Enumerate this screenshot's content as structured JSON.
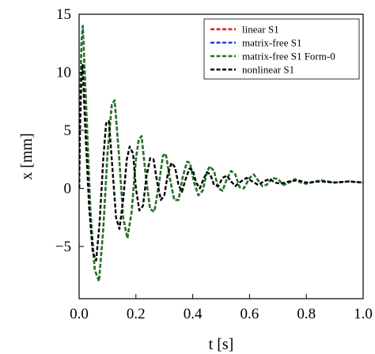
{
  "chart_data": {
    "type": "line",
    "xlabel": "t [s]",
    "ylabel": "x [mm]",
    "xlim": [
      0.0,
      1.0
    ],
    "ylim": [
      -9.5,
      15.0
    ],
    "xticks": [
      0.0,
      0.2,
      0.4,
      0.6,
      0.8,
      1.0
    ],
    "xtick_labels": [
      "0.0",
      "0.2",
      "0.4",
      "0.6",
      "0.8",
      "1.0"
    ],
    "yticks": [
      -5,
      0,
      5,
      10,
      15
    ],
    "ytick_labels": [
      "−5",
      "0",
      "5",
      "10",
      "15"
    ],
    "grid": false,
    "legend_position": "top-right",
    "series": [
      {
        "name": "linear S1",
        "color": "#e41a1c",
        "points": [
          [
            0.0,
            0.0
          ],
          [
            0.003,
            6.0
          ],
          [
            0.008,
            12.5
          ],
          [
            0.013,
            14.0
          ],
          [
            0.025,
            7.0
          ],
          [
            0.04,
            -2.0
          ],
          [
            0.055,
            -7.0
          ],
          [
            0.07,
            -8.0
          ],
          [
            0.085,
            -3.5
          ],
          [
            0.1,
            3.0
          ],
          [
            0.115,
            7.2
          ],
          [
            0.125,
            7.6
          ],
          [
            0.14,
            3.0
          ],
          [
            0.155,
            -2.5
          ],
          [
            0.17,
            -4.3
          ],
          [
            0.185,
            -2.0
          ],
          [
            0.2,
            2.5
          ],
          [
            0.21,
            4.2
          ],
          [
            0.22,
            4.5
          ],
          [
            0.235,
            1.0
          ],
          [
            0.25,
            -1.8
          ],
          [
            0.265,
            -2.0
          ],
          [
            0.28,
            0.2
          ],
          [
            0.295,
            2.8
          ],
          [
            0.305,
            3.0
          ],
          [
            0.32,
            0.8
          ],
          [
            0.335,
            -1.0
          ],
          [
            0.35,
            -1.0
          ],
          [
            0.365,
            1.0
          ],
          [
            0.38,
            2.3
          ],
          [
            0.39,
            2.2
          ],
          [
            0.405,
            0.5
          ],
          [
            0.42,
            -0.6
          ],
          [
            0.435,
            -0.2
          ],
          [
            0.45,
            1.4
          ],
          [
            0.46,
            1.9
          ],
          [
            0.475,
            1.5
          ],
          [
            0.49,
            0.0
          ],
          [
            0.505,
            -0.2
          ],
          [
            0.52,
            0.8
          ],
          [
            0.535,
            1.5
          ],
          [
            0.55,
            1.2
          ],
          [
            0.565,
            0.1
          ],
          [
            0.58,
            0.0
          ],
          [
            0.6,
            0.9
          ],
          [
            0.615,
            1.2
          ],
          [
            0.63,
            0.7
          ],
          [
            0.645,
            0.2
          ],
          [
            0.66,
            0.3
          ],
          [
            0.68,
            0.9
          ],
          [
            0.7,
            0.8
          ],
          [
            0.72,
            0.3
          ],
          [
            0.74,
            0.5
          ],
          [
            0.76,
            0.8
          ],
          [
            0.78,
            0.5
          ],
          [
            0.8,
            0.4
          ],
          [
            0.85,
            0.7
          ],
          [
            0.9,
            0.5
          ],
          [
            0.95,
            0.6
          ],
          [
            1.0,
            0.5
          ]
        ]
      },
      {
        "name": "matrix-free S1",
        "color": "#1f3fd8",
        "points": [
          [
            0.0,
            0.0
          ],
          [
            0.003,
            6.0
          ],
          [
            0.008,
            12.5
          ],
          [
            0.013,
            14.0
          ],
          [
            0.025,
            7.0
          ],
          [
            0.04,
            -2.0
          ],
          [
            0.055,
            -7.0
          ],
          [
            0.07,
            -8.0
          ],
          [
            0.085,
            -3.5
          ],
          [
            0.1,
            3.0
          ],
          [
            0.115,
            7.2
          ],
          [
            0.125,
            7.6
          ],
          [
            0.14,
            3.0
          ],
          [
            0.155,
            -2.5
          ],
          [
            0.17,
            -4.3
          ],
          [
            0.185,
            -2.0
          ],
          [
            0.2,
            2.5
          ],
          [
            0.21,
            4.2
          ],
          [
            0.22,
            4.5
          ],
          [
            0.235,
            1.0
          ],
          [
            0.25,
            -1.8
          ],
          [
            0.265,
            -2.0
          ],
          [
            0.28,
            0.2
          ],
          [
            0.295,
            2.8
          ],
          [
            0.305,
            3.0
          ],
          [
            0.32,
            0.8
          ],
          [
            0.335,
            -1.0
          ],
          [
            0.35,
            -1.0
          ],
          [
            0.365,
            1.0
          ],
          [
            0.38,
            2.3
          ],
          [
            0.39,
            2.2
          ],
          [
            0.405,
            0.5
          ],
          [
            0.42,
            -0.6
          ],
          [
            0.435,
            -0.2
          ],
          [
            0.45,
            1.4
          ],
          [
            0.46,
            1.9
          ],
          [
            0.475,
            1.5
          ],
          [
            0.49,
            0.0
          ],
          [
            0.505,
            -0.2
          ],
          [
            0.52,
            0.8
          ],
          [
            0.535,
            1.5
          ],
          [
            0.55,
            1.2
          ],
          [
            0.565,
            0.1
          ],
          [
            0.58,
            0.0
          ],
          [
            0.6,
            0.9
          ],
          [
            0.615,
            1.2
          ],
          [
            0.63,
            0.7
          ],
          [
            0.645,
            0.2
          ],
          [
            0.66,
            0.3
          ],
          [
            0.68,
            0.9
          ],
          [
            0.7,
            0.8
          ],
          [
            0.72,
            0.3
          ],
          [
            0.74,
            0.5
          ],
          [
            0.76,
            0.8
          ],
          [
            0.78,
            0.5
          ],
          [
            0.8,
            0.4
          ],
          [
            0.85,
            0.7
          ],
          [
            0.9,
            0.5
          ],
          [
            0.95,
            0.6
          ],
          [
            1.0,
            0.5
          ]
        ]
      },
      {
        "name": "matrix-free S1 Form-0",
        "color": "#1d7a1d",
        "points": [
          [
            0.0,
            0.0
          ],
          [
            0.003,
            6.0
          ],
          [
            0.008,
            12.5
          ],
          [
            0.013,
            14.0
          ],
          [
            0.025,
            7.0
          ],
          [
            0.04,
            -2.0
          ],
          [
            0.055,
            -7.0
          ],
          [
            0.07,
            -8.0
          ],
          [
            0.085,
            -3.5
          ],
          [
            0.1,
            3.0
          ],
          [
            0.115,
            7.2
          ],
          [
            0.125,
            7.6
          ],
          [
            0.14,
            3.0
          ],
          [
            0.155,
            -2.5
          ],
          [
            0.17,
            -4.3
          ],
          [
            0.185,
            -2.0
          ],
          [
            0.2,
            2.5
          ],
          [
            0.21,
            4.2
          ],
          [
            0.22,
            4.5
          ],
          [
            0.235,
            1.0
          ],
          [
            0.25,
            -1.8
          ],
          [
            0.265,
            -2.0
          ],
          [
            0.28,
            0.2
          ],
          [
            0.295,
            2.8
          ],
          [
            0.305,
            3.0
          ],
          [
            0.32,
            0.8
          ],
          [
            0.335,
            -1.0
          ],
          [
            0.35,
            -1.0
          ],
          [
            0.365,
            1.0
          ],
          [
            0.38,
            2.3
          ],
          [
            0.39,
            2.2
          ],
          [
            0.405,
            0.5
          ],
          [
            0.42,
            -0.6
          ],
          [
            0.435,
            -0.2
          ],
          [
            0.45,
            1.4
          ],
          [
            0.46,
            1.9
          ],
          [
            0.475,
            1.5
          ],
          [
            0.49,
            0.0
          ],
          [
            0.505,
            -0.2
          ],
          [
            0.52,
            0.8
          ],
          [
            0.535,
            1.5
          ],
          [
            0.55,
            1.2
          ],
          [
            0.565,
            0.1
          ],
          [
            0.58,
            0.0
          ],
          [
            0.6,
            0.9
          ],
          [
            0.615,
            1.2
          ],
          [
            0.63,
            0.7
          ],
          [
            0.645,
            0.2
          ],
          [
            0.66,
            0.3
          ],
          [
            0.68,
            0.9
          ],
          [
            0.7,
            0.8
          ],
          [
            0.72,
            0.3
          ],
          [
            0.74,
            0.5
          ],
          [
            0.76,
            0.8
          ],
          [
            0.78,
            0.5
          ],
          [
            0.8,
            0.4
          ],
          [
            0.85,
            0.7
          ],
          [
            0.9,
            0.5
          ],
          [
            0.95,
            0.6
          ],
          [
            1.0,
            0.5
          ]
        ]
      },
      {
        "name": "nonlinear S1",
        "color": "#000000",
        "points": [
          [
            0.0,
            0.0
          ],
          [
            0.003,
            5.0
          ],
          [
            0.008,
            9.5
          ],
          [
            0.012,
            10.7
          ],
          [
            0.022,
            5.0
          ],
          [
            0.035,
            -1.5
          ],
          [
            0.048,
            -5.5
          ],
          [
            0.06,
            -6.2
          ],
          [
            0.072,
            -3.0
          ],
          [
            0.085,
            2.5
          ],
          [
            0.095,
            5.6
          ],
          [
            0.105,
            5.8
          ],
          [
            0.118,
            1.5
          ],
          [
            0.13,
            -2.5
          ],
          [
            0.142,
            -3.5
          ],
          [
            0.155,
            -1.0
          ],
          [
            0.168,
            2.5
          ],
          [
            0.178,
            3.6
          ],
          [
            0.19,
            3.0
          ],
          [
            0.2,
            0.0
          ],
          [
            0.212,
            -1.9
          ],
          [
            0.225,
            -1.5
          ],
          [
            0.237,
            1.0
          ],
          [
            0.25,
            2.6
          ],
          [
            0.262,
            2.5
          ],
          [
            0.275,
            0.5
          ],
          [
            0.288,
            -1.0
          ],
          [
            0.3,
            -0.6
          ],
          [
            0.312,
            1.2
          ],
          [
            0.325,
            2.2
          ],
          [
            0.338,
            1.8
          ],
          [
            0.35,
            0.3
          ],
          [
            0.362,
            -0.3
          ],
          [
            0.375,
            0.8
          ],
          [
            0.388,
            1.7
          ],
          [
            0.4,
            1.6
          ],
          [
            0.412,
            0.5
          ],
          [
            0.425,
            0.0
          ],
          [
            0.438,
            0.8
          ],
          [
            0.45,
            1.4
          ],
          [
            0.462,
            1.2
          ],
          [
            0.475,
            0.3
          ],
          [
            0.49,
            0.2
          ],
          [
            0.505,
            0.9
          ],
          [
            0.52,
            1.1
          ],
          [
            0.535,
            0.6
          ],
          [
            0.55,
            0.2
          ],
          [
            0.57,
            0.6
          ],
          [
            0.59,
            0.9
          ],
          [
            0.61,
            0.6
          ],
          [
            0.63,
            0.3
          ],
          [
            0.65,
            0.6
          ],
          [
            0.67,
            0.8
          ],
          [
            0.69,
            0.5
          ],
          [
            0.71,
            0.4
          ],
          [
            0.74,
            0.6
          ],
          [
            0.77,
            0.7
          ],
          [
            0.8,
            0.5
          ],
          [
            0.85,
            0.6
          ],
          [
            0.9,
            0.5
          ],
          [
            0.95,
            0.6
          ],
          [
            1.0,
            0.5
          ]
        ]
      }
    ]
  }
}
